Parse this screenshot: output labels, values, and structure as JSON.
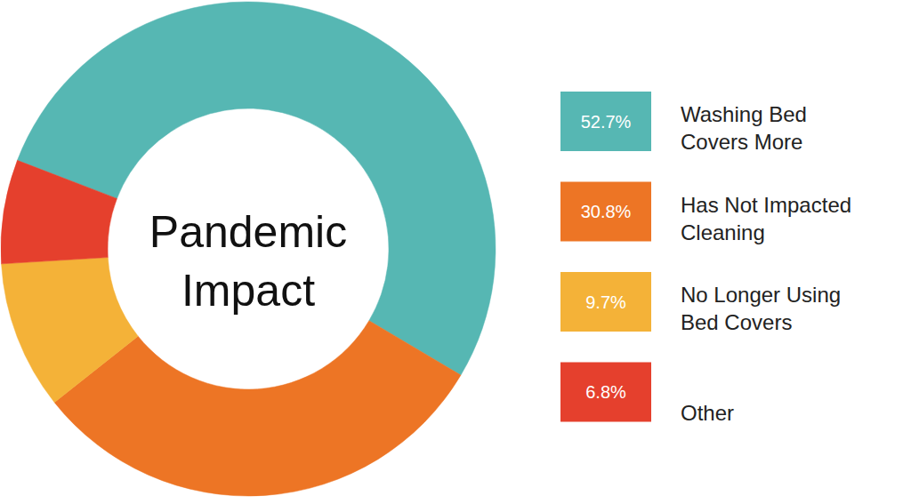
{
  "chart_data": {
    "type": "donut",
    "title": "Pandemic Impact",
    "categories": [
      "Washing Bed Covers More",
      "Has Not Impacted Cleaning",
      "No Longer Using Bed Covers",
      "Other"
    ],
    "values": [
      52.7,
      30.8,
      9.7,
      6.8
    ],
    "value_labels": [
      "52.7%",
      "30.8%",
      "9.7%",
      "6.8%"
    ],
    "colors": [
      "#56b7b3",
      "#ed7525",
      "#f4b238",
      "#e5402d"
    ],
    "legend": "right",
    "data_labels": false
  }
}
